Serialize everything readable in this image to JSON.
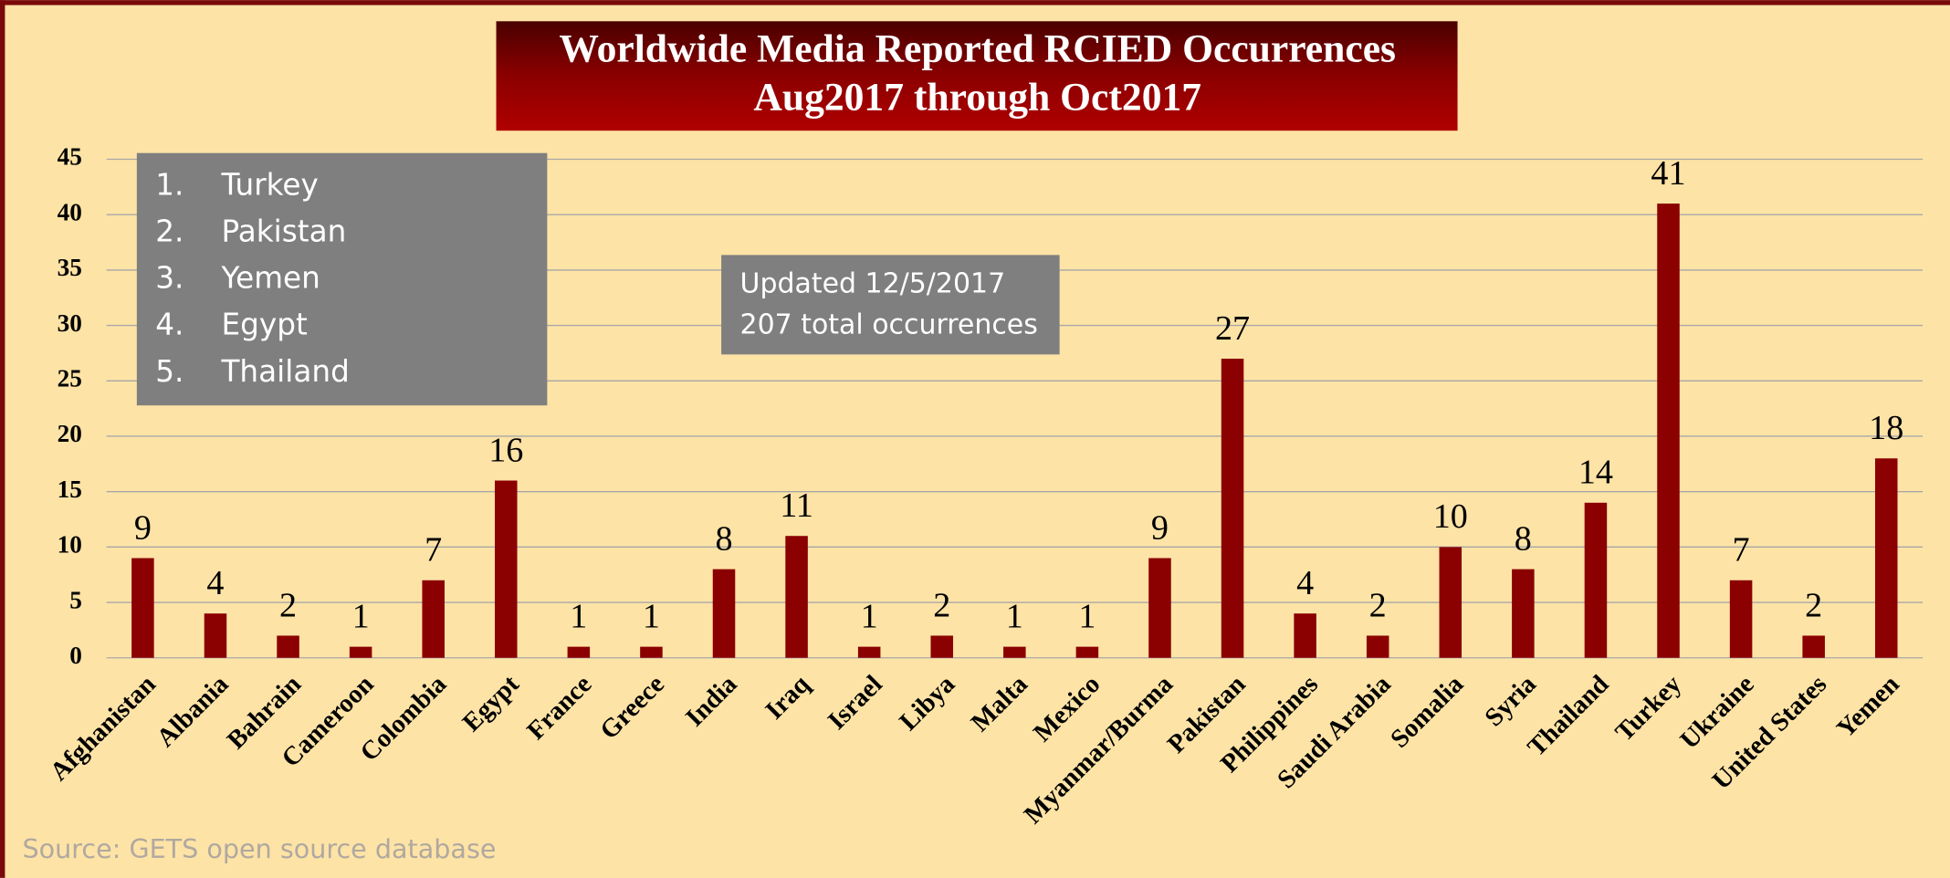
{
  "chart_data": {
    "type": "bar",
    "title": "Worldwide Media Reported RCIED Occurrences",
    "subtitle": "Aug2017 through Oct2017",
    "categories": [
      "Afghanistan",
      "Albania",
      "Bahrain",
      "Cameroon",
      "Colombia",
      "Egypt",
      "France",
      "Greece",
      "India",
      "Iraq",
      "Israel",
      "Libya",
      "Malta",
      "Mexico",
      "Myanmar/Burma",
      "Pakistan",
      "Philippines",
      "Saudi Arabia",
      "Somalia",
      "Syria",
      "Thailand",
      "Turkey",
      "Ukraine",
      "United States",
      "Yemen"
    ],
    "values": [
      9,
      4,
      2,
      1,
      7,
      16,
      1,
      1,
      8,
      11,
      1,
      2,
      1,
      1,
      9,
      27,
      4,
      2,
      10,
      8,
      14,
      41,
      7,
      2,
      18
    ],
    "color": "#8b0000",
    "ylim": [
      0,
      45
    ],
    "yticks": [
      0,
      5,
      10,
      15,
      20,
      25,
      30,
      35,
      40,
      45
    ],
    "grid": true,
    "ranking": {
      "numbers": [
        "1.",
        "2.",
        "3.",
        "4.",
        "5."
      ],
      "names": [
        "Turkey",
        "Pakistan",
        "Yemen",
        "Egypt",
        "Thailand"
      ]
    },
    "annotations": [
      "Updated 12/5/2017",
      "207 total occurrences"
    ],
    "source": "Source: GETS open source database"
  }
}
